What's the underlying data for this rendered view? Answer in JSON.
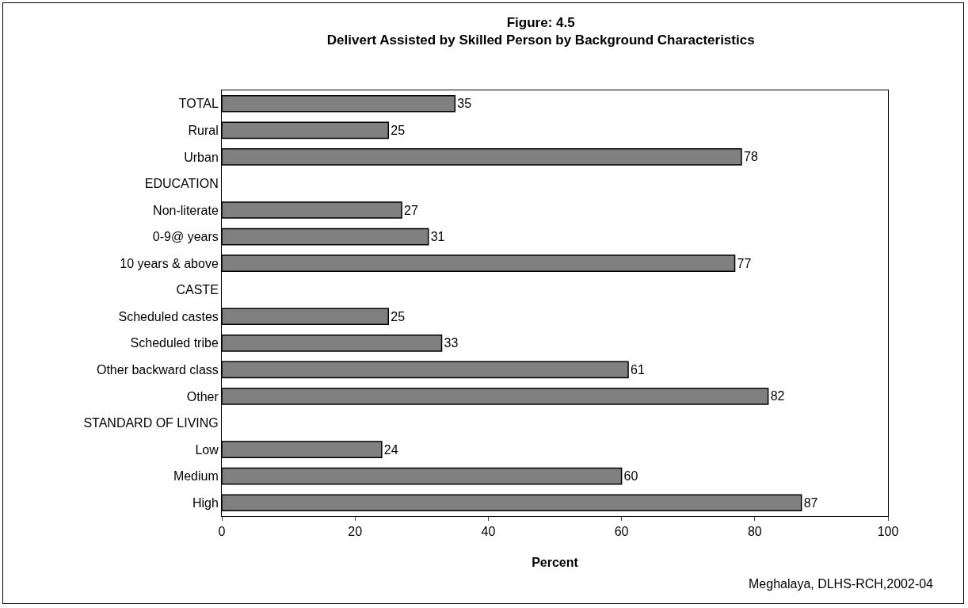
{
  "chart_data": {
    "type": "bar",
    "orientation": "horizontal",
    "title": "Figure: 4.5",
    "subtitle": "Delivert Assisted by Skilled Person by Background Characteristics",
    "xlabel": "Percent",
    "categories": [
      "TOTAL",
      "Rural",
      "Urban",
      "EDUCATION",
      "Non-literate",
      "0-9@ years",
      "10 years & above",
      "CASTE",
      "Scheduled castes",
      "Scheduled tribe",
      "Other backward class",
      "Other",
      "STANDARD OF LIVING",
      "Low",
      "Medium",
      "High"
    ],
    "values": [
      35,
      25,
      78,
      null,
      27,
      31,
      77,
      null,
      25,
      33,
      61,
      82,
      null,
      24,
      60,
      87
    ],
    "color": "#808080",
    "xlim": [
      0,
      100
    ],
    "xticks": [
      0,
      20,
      40,
      60,
      80,
      100
    ],
    "grid": false,
    "legend": false,
    "data_labels": true,
    "annotations": [
      "Meghalaya, DLHS-RCH,2002-04"
    ]
  }
}
